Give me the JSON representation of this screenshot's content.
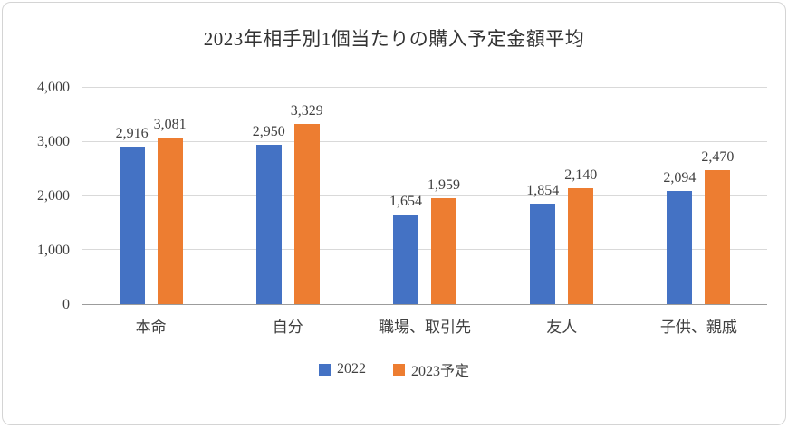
{
  "chart_data": {
    "type": "bar",
    "title": "2023年相手別1個当たりの購入予定金額平均",
    "categories": [
      "本命",
      "自分",
      "職場、取引先",
      "友人",
      "子供、親戚"
    ],
    "series": [
      {
        "name": "2022",
        "color": "#4472C4",
        "values": [
          2916,
          2950,
          1654,
          1854,
          2094
        ],
        "labels": [
          "2,916",
          "2,950",
          "1,654",
          "1,854",
          "2,094"
        ]
      },
      {
        "name": "2023予定",
        "color": "#ED7D31",
        "values": [
          3081,
          3329,
          1959,
          2140,
          2470
        ],
        "labels": [
          "3,081",
          "3,329",
          "1,959",
          "2,140",
          "2,470"
        ]
      }
    ],
    "xlabel": "",
    "ylabel": "",
    "ylim": [
      0,
      4000
    ],
    "yticks": [
      0,
      1000,
      2000,
      3000,
      4000
    ],
    "ytick_labels": [
      "0",
      "1,000",
      "2,000",
      "3,000",
      "4,000"
    ],
    "grid": true,
    "legend_position": "bottom"
  }
}
